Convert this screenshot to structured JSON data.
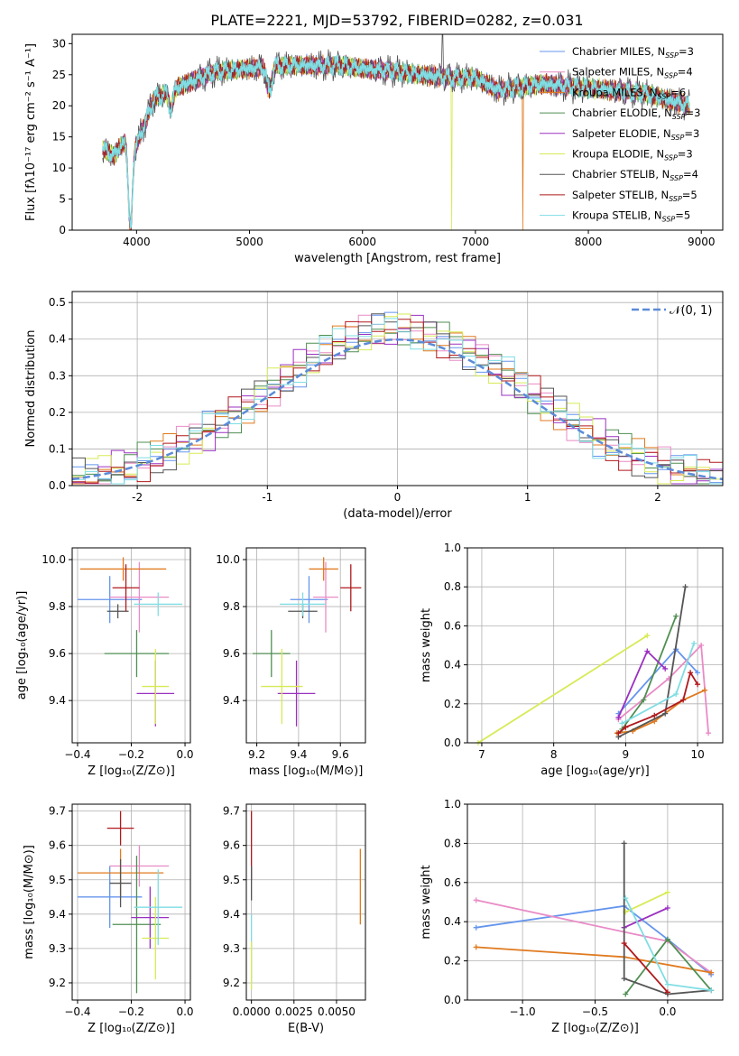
{
  "figure_title": "PLATE=2221, MJD=53792, FIBERID=0282, z=0.031",
  "colors": {
    "cm": "#6495ed",
    "sm": "#e98bc6",
    "km": "#e07a1f",
    "ce": "#4f8f52",
    "se": "#9b30c0",
    "ke": "#d7ea55",
    "cs": "#555555",
    "ss": "#b0191c",
    "ks": "#7fdde3",
    "grid": "#b0b0b0",
    "normal": "#5b8bd8"
  },
  "chart_data": [
    {
      "id": "spectrum",
      "type": "line",
      "title": "PLATE=2221, MJD=53792, FIBERID=0282, z=0.031",
      "xlabel": "wavelength [Angstrom, rest frame]",
      "ylabel": "Flux [fλ10⁻¹⁷ erg cm⁻² s⁻¹ A⁻¹]",
      "xlim": [
        3430,
        9190
      ],
      "ylim": [
        0,
        31.5
      ],
      "xticks": [
        "4000",
        "5000",
        "6000",
        "7000",
        "8000",
        "9000"
      ],
      "yticks": [
        "0",
        "5",
        "10",
        "15",
        "20",
        "25",
        "30"
      ],
      "grid": false,
      "legend": "top-right",
      "x_range": [
        3700,
        8900
      ],
      "continuum": [
        [
          3700,
          13
        ],
        [
          3800,
          12
        ],
        [
          3900,
          14.5
        ],
        [
          3950,
          12
        ],
        [
          4050,
          16
        ],
        [
          4150,
          21
        ],
        [
          4300,
          22.5
        ],
        [
          4500,
          24
        ],
        [
          4700,
          25.5
        ],
        [
          5000,
          26
        ],
        [
          5300,
          26.5
        ],
        [
          5500,
          26.5
        ],
        [
          5800,
          26.5
        ],
        [
          6000,
          26
        ],
        [
          6300,
          25.5
        ],
        [
          6500,
          25
        ],
        [
          6800,
          24.5
        ],
        [
          7000,
          24.5
        ],
        [
          7200,
          22.5
        ],
        [
          7400,
          23
        ],
        [
          7600,
          23.5
        ],
        [
          7900,
          23
        ],
        [
          8200,
          22.5
        ],
        [
          8500,
          22
        ],
        [
          8800,
          20.5
        ],
        [
          8900,
          20
        ]
      ],
      "features": [
        {
          "name": "Ca H+K",
          "center": 3945,
          "width": 25,
          "depth": 12
        },
        {
          "name": "G band",
          "center": 4304,
          "width": 25,
          "depth": 3
        },
        {
          "name": "Mg b",
          "center": 5175,
          "width": 30,
          "depth": 4
        }
      ],
      "artifacts": [
        {
          "series": "Kroupa ELODIE",
          "x": 6790,
          "y_min": 0
        },
        {
          "series": "Kroupa MILES",
          "x": 7420,
          "y_min": 0
        },
        {
          "series": "Chabrier STELIB",
          "x": 6710,
          "y_max": 31.5
        }
      ],
      "series": [
        {
          "name": "Chabrier MILES",
          "nssp": "3",
          "color": "#6495ed"
        },
        {
          "name": "Salpeter MILES",
          "nssp": "4",
          "color": "#e98bc6"
        },
        {
          "name": "Kroupa MILES",
          "nssp": "6",
          "color": "#e07a1f"
        },
        {
          "name": "Chabrier ELODIE",
          "nssp": "3",
          "color": "#4f8f52"
        },
        {
          "name": "Salpeter ELODIE",
          "nssp": "3",
          "color": "#9b30c0"
        },
        {
          "name": "Kroupa ELODIE",
          "nssp": "3",
          "color": "#d7ea55"
        },
        {
          "name": "Chabrier STELIB",
          "nssp": "4",
          "color": "#555555"
        },
        {
          "name": "Salpeter STELIB",
          "nssp": "5",
          "color": "#b0191c"
        },
        {
          "name": "Kroupa STELIB",
          "nssp": "5",
          "color": "#7fdde3"
        }
      ]
    },
    {
      "id": "residuals",
      "type": "line",
      "xlabel": "(data-model)/error",
      "ylabel": "Normed distribution",
      "xlim": [
        -2.5,
        2.5
      ],
      "ylim": [
        0,
        0.53
      ],
      "xticks": [
        -2,
        -1,
        0,
        1,
        2
      ],
      "yticks": [
        "0.0",
        "0.1",
        "0.2",
        "0.3",
        "0.4",
        "0.5"
      ],
      "grid": true,
      "legend": "top-right",
      "legend_label": "𝒩(0, 1)",
      "bin_width": 0.1,
      "description_series": "step histograms, one per fit (same colors as above), scattered around the normal curve"
    },
    {
      "id": "z-age",
      "type": "scatter",
      "xlabel": "Z [log₁₀(Z/Z⊙)]",
      "ylabel": "age  [log₁₀(age/yr)]",
      "xlim": [
        -0.42,
        0.02
      ],
      "ylim": [
        9.22,
        10.05
      ],
      "xticks": [
        "−0.4",
        "−0.2",
        "0.0"
      ],
      "yticks": [
        "9.4",
        "9.6",
        "9.8",
        "10.0"
      ],
      "points": [
        {
          "s": "cm",
          "x": -0.28,
          "xerr": 0.12,
          "y": 9.83,
          "yerr": 0.1
        },
        {
          "s": "sm",
          "x": -0.17,
          "xerr": 0.11,
          "y": 9.84,
          "yerr": 0.15
        },
        {
          "s": "km",
          "x": -0.23,
          "xerr": 0.16,
          "y": 9.96,
          "yerr": 0.05
        },
        {
          "s": "ce",
          "x": -0.18,
          "xerr": 0.12,
          "y": 9.6,
          "yerr": 0.1
        },
        {
          "s": "se",
          "x": -0.11,
          "xerr": 0.07,
          "y": 9.43,
          "yerr": 0.14
        },
        {
          "s": "ke",
          "x": -0.11,
          "xerr": 0.05,
          "y": 9.46,
          "yerr": 0.16
        },
        {
          "s": "cs",
          "x": -0.25,
          "xerr": 0.04,
          "y": 9.78,
          "yerr": 0.03
        },
        {
          "s": "ss",
          "x": -0.22,
          "xerr": 0.05,
          "y": 9.88,
          "yerr": 0.1
        },
        {
          "s": "ks",
          "x": -0.1,
          "xerr": 0.09,
          "y": 9.81,
          "yerr": 0.05
        }
      ]
    },
    {
      "id": "mass-age",
      "type": "scatter",
      "xlabel": "mass [log₁₀(M/M⊙)]",
      "xlim": [
        9.15,
        9.72
      ],
      "ylim": [
        9.22,
        10.05
      ],
      "xticks": [
        "9.2",
        "9.4",
        "9.6"
      ],
      "yticks": [
        "9.4",
        "9.6",
        "9.8",
        "10.0"
      ],
      "points": [
        {
          "s": "cm",
          "x": 9.45,
          "xerr": 0.09,
          "y": 9.83,
          "yerr": 0.1
        },
        {
          "s": "sm",
          "x": 9.53,
          "xerr": 0.06,
          "y": 9.84,
          "yerr": 0.15
        },
        {
          "s": "km",
          "x": 9.52,
          "xerr": 0.07,
          "y": 9.96,
          "yerr": 0.05
        },
        {
          "s": "ce",
          "x": 9.27,
          "xerr": 0.09,
          "y": 9.6,
          "yerr": 0.1
        },
        {
          "s": "se",
          "x": 9.39,
          "xerr": 0.09,
          "y": 9.43,
          "yerr": 0.14
        },
        {
          "s": "ke",
          "x": 9.32,
          "xerr": 0.1,
          "y": 9.46,
          "yerr": 0.16
        },
        {
          "s": "cs",
          "x": 9.42,
          "xerr": 0.07,
          "y": 9.78,
          "yerr": 0.03
        },
        {
          "s": "ss",
          "x": 9.65,
          "xerr": 0.05,
          "y": 9.88,
          "yerr": 0.1
        },
        {
          "s": "ks",
          "x": 9.42,
          "xerr": 0.11,
          "y": 9.81,
          "yerr": 0.05
        }
      ]
    },
    {
      "id": "age-weight",
      "type": "line",
      "xlabel": "age  [log₁₀(age/yr)]",
      "ylabel": "mass weight",
      "xlim": [
        6.8,
        10.35
      ],
      "ylim": [
        0,
        1
      ],
      "xticks": [
        "7",
        "8",
        "9",
        "10"
      ],
      "yticks": [
        "0.0",
        "0.2",
        "0.4",
        "0.6",
        "0.8",
        "1.0"
      ],
      "grid": true,
      "lines": [
        {
          "s": "cm",
          "pts": [
            [
              8.9,
              0.15
            ],
            [
              9.7,
              0.48
            ],
            [
              10.0,
              0.36
            ]
          ]
        },
        {
          "s": "sm",
          "pts": [
            [
              8.9,
              0.12
            ],
            [
              9.6,
              0.33
            ],
            [
              10.05,
              0.5
            ],
            [
              10.15,
              0.05
            ]
          ]
        },
        {
          "s": "km",
          "pts": [
            [
              8.88,
              0.05
            ],
            [
              9.1,
              0.06
            ],
            [
              9.4,
              0.11
            ],
            [
              9.8,
              0.22
            ],
            [
              10.1,
              0.27
            ]
          ]
        },
        {
          "s": "ce",
          "pts": [
            [
              8.95,
              0.07
            ],
            [
              9.25,
              0.22
            ],
            [
              9.7,
              0.65
            ]
          ]
        },
        {
          "s": "se",
          "pts": [
            [
              8.9,
              0.13
            ],
            [
              9.3,
              0.47
            ],
            [
              9.55,
              0.38
            ]
          ]
        },
        {
          "s": "ke",
          "pts": [
            [
              6.95,
              0.0
            ],
            [
              9.3,
              0.55
            ]
          ]
        },
        {
          "s": "cs",
          "pts": [
            [
              8.9,
              0.03
            ],
            [
              9.55,
              0.15
            ],
            [
              9.83,
              0.8
            ]
          ]
        },
        {
          "s": "ss",
          "pts": [
            [
              8.9,
              0.05
            ],
            [
              9.0,
              0.08
            ],
            [
              9.4,
              0.14
            ],
            [
              9.8,
              0.22
            ],
            [
              9.9,
              0.36
            ],
            [
              10.0,
              0.3
            ]
          ]
        },
        {
          "s": "ks",
          "pts": [
            [
              8.95,
              0.1
            ],
            [
              9.7,
              0.25
            ],
            [
              9.95,
              0.51
            ]
          ]
        }
      ]
    },
    {
      "id": "z-mass",
      "type": "scatter",
      "xlabel": "Z [log₁₀(Z/Z⊙)]",
      "ylabel": "mass [log₁₀(M/M⊙)]",
      "xlim": [
        -0.42,
        0.02
      ],
      "ylim": [
        9.15,
        9.72
      ],
      "xticks": [
        "−0.4",
        "−0.2",
        "0.0"
      ],
      "yticks": [
        "9.2",
        "9.3",
        "9.4",
        "9.5",
        "9.6",
        "9.7"
      ],
      "points": [
        {
          "s": "cm",
          "x": -0.28,
          "xerr": 0.12,
          "y": 9.45,
          "yerr": 0.09
        },
        {
          "s": "sm",
          "x": -0.17,
          "xerr": 0.11,
          "y": 9.54,
          "yerr": 0.06
        },
        {
          "s": "km",
          "x": -0.24,
          "xerr": 0.16,
          "y": 9.52,
          "yerr": 0.07
        },
        {
          "s": "ce",
          "x": -0.18,
          "xerr": 0.09,
          "y": 9.37,
          "yerr": 0.2
        },
        {
          "s": "se",
          "x": -0.13,
          "xerr": 0.07,
          "y": 9.39,
          "yerr": 0.09
        },
        {
          "s": "ke",
          "x": -0.11,
          "xerr": 0.05,
          "y": 9.33,
          "yerr": 0.12
        },
        {
          "s": "cs",
          "x": -0.24,
          "xerr": 0.04,
          "y": 9.49,
          "yerr": 0.07
        },
        {
          "s": "ss",
          "x": -0.24,
          "xerr": 0.05,
          "y": 9.65,
          "yerr": 0.05
        },
        {
          "s": "ks",
          "x": -0.1,
          "xerr": 0.09,
          "y": 9.42,
          "yerr": 0.11
        }
      ]
    },
    {
      "id": "ebv-mass",
      "type": "scatter",
      "xlabel": "E(B-V)",
      "xlim": [
        -0.0003,
        0.0067
      ],
      "ylim": [
        9.15,
        9.72
      ],
      "xticks": [
        "0.0000",
        "0.0025",
        "0.0050"
      ],
      "yticks": [
        "9.2",
        "9.3",
        "9.4",
        "9.5",
        "9.6",
        "9.7"
      ],
      "points": [
        {
          "s": "ss",
          "x": 0.0,
          "y": 9.6,
          "yerr": 0.1
        },
        {
          "s": "cs",
          "x": 0.0,
          "y": 9.49,
          "yerr": 0.05
        },
        {
          "s": "ks",
          "x": 0.0,
          "y": 9.3,
          "yerr": 0.1
        },
        {
          "s": "ke",
          "x": 0.0,
          "y": 9.25,
          "yerr": 0.07
        },
        {
          "s": "km",
          "x": 0.0064,
          "y": 9.48,
          "yerr": 0.11
        }
      ]
    },
    {
      "id": "z-weight",
      "type": "line",
      "xlabel": "Z [log₁₀(Z/Z⊙)]",
      "ylabel": "mass weight",
      "xlim": [
        -1.38,
        0.38
      ],
      "ylim": [
        0,
        1
      ],
      "xticks": [
        "−1.0",
        "−0.5",
        "0.0"
      ],
      "yticks": [
        "0.0",
        "0.2",
        "0.4",
        "0.6",
        "0.8",
        "1.0"
      ],
      "grid": true,
      "lines": [
        {
          "s": "cm",
          "pts": [
            [
              -1.32,
              0.37
            ],
            [
              -0.3,
              0.48
            ],
            [
              0.0,
              0.31
            ],
            [
              0.3,
              0.13
            ]
          ]
        },
        {
          "s": "sm",
          "pts": [
            [
              -1.32,
              0.51
            ],
            [
              0.0,
              0.3
            ],
            [
              0.3,
              0.14
            ]
          ]
        },
        {
          "s": "km",
          "pts": [
            [
              -1.32,
              0.27
            ],
            [
              -0.3,
              0.22
            ],
            [
              0.3,
              0.14
            ]
          ]
        },
        {
          "s": "ce",
          "pts": [
            [
              -0.29,
              0.03
            ],
            [
              0.0,
              0.31
            ],
            [
              0.3,
              0.05
            ]
          ]
        },
        {
          "s": "se",
          "pts": [
            [
              -0.3,
              0.37
            ],
            [
              0.0,
              0.47
            ]
          ]
        },
        {
          "s": "ke",
          "pts": [
            [
              -0.29,
              0.45
            ],
            [
              0.0,
              0.55
            ]
          ]
        },
        {
          "s": "cs",
          "pts": [
            [
              -0.3,
              0.8
            ],
            [
              -0.3,
              0.11
            ],
            [
              0.0,
              0.03
            ],
            [
              0.3,
              0.05
            ]
          ]
        },
        {
          "s": "ss",
          "pts": [
            [
              -0.3,
              0.29
            ],
            [
              0.0,
              0.04
            ]
          ]
        },
        {
          "s": "ks",
          "pts": [
            [
              -0.29,
              0.52
            ],
            [
              0.0,
              0.08
            ],
            [
              0.3,
              0.05
            ]
          ]
        }
      ]
    }
  ]
}
